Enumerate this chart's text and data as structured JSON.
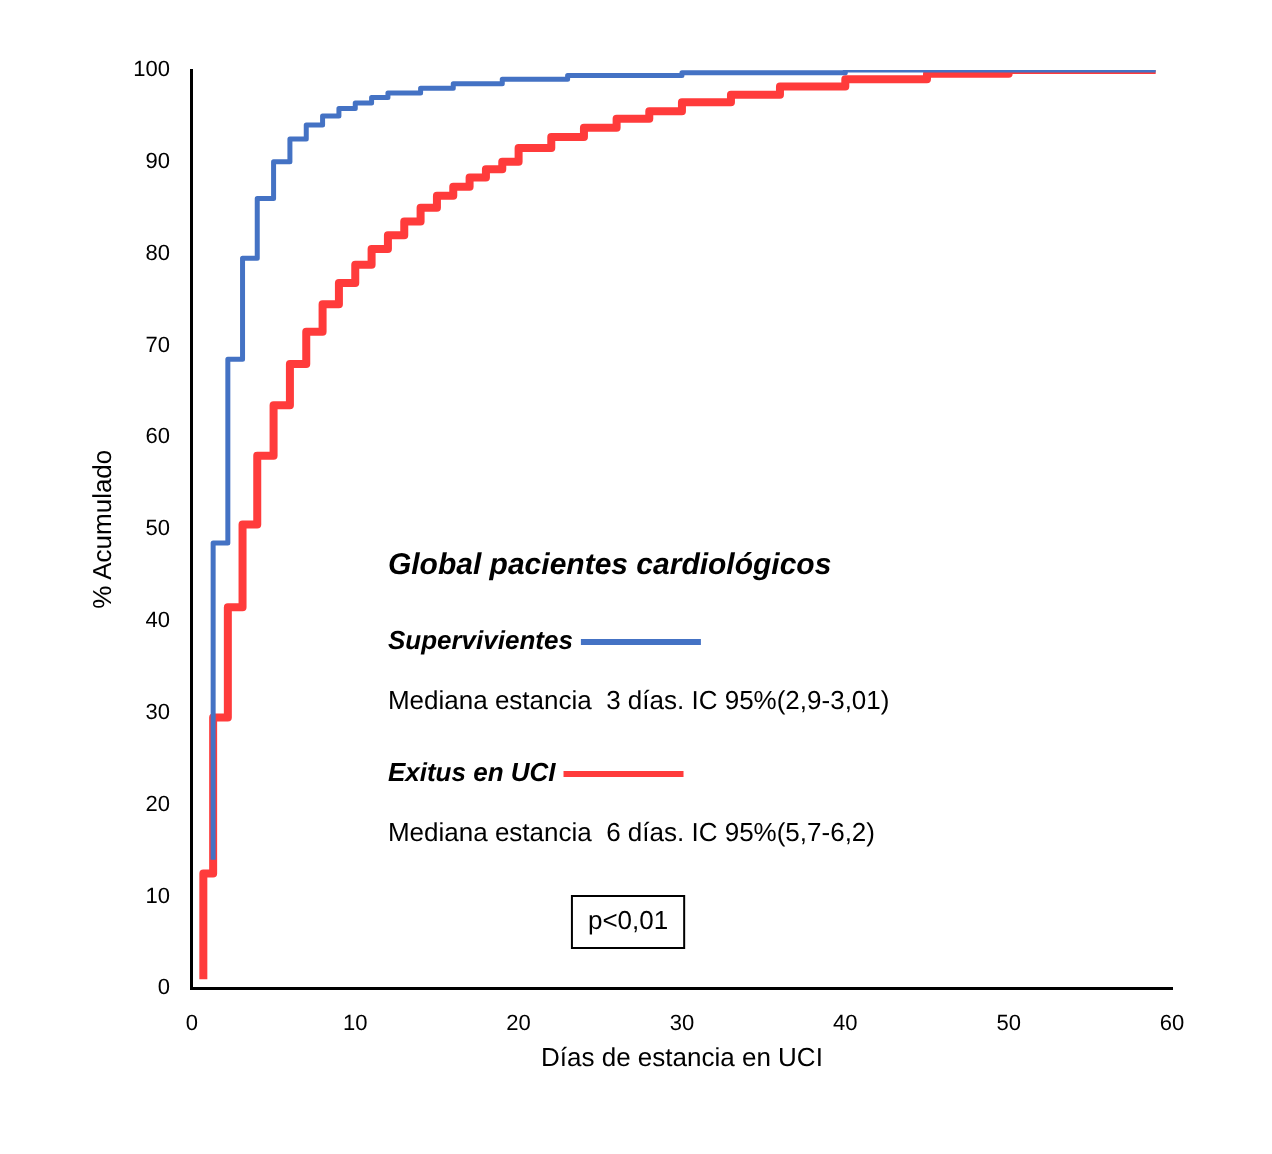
{
  "chart_data": {
    "type": "step",
    "title": "Global pacientes cardiológicos",
    "xlabel": "Días de estancia en UCI",
    "ylabel": "% Acumulado",
    "xlim": [
      0,
      60
    ],
    "xticks": [
      0,
      10,
      20,
      30,
      40,
      50,
      60
    ],
    "ylim": [
      0,
      100
    ],
    "yticks": [
      0,
      10,
      20,
      30,
      40,
      50,
      60,
      70,
      80,
      90,
      100
    ],
    "grid": false,
    "legend": "center",
    "marker": "none",
    "line_style": "solid",
    "series": [
      {
        "name": "Supervivientes",
        "color": "#4472c4",
        "x": [
          1.3,
          2.2,
          3.1,
          4,
          5,
          6,
          7,
          8,
          9,
          10,
          11,
          12,
          14,
          16,
          19,
          23,
          30,
          40,
          50,
          59
        ],
        "values": [
          14,
          48.5,
          68.5,
          79.5,
          86,
          90,
          92.5,
          94,
          95,
          95.8,
          96.4,
          97,
          97.5,
          98,
          98.5,
          99,
          99.4,
          99.7,
          100,
          100
        ]
      },
      {
        "name": "Exitus en UCI",
        "color": "#ff3b3b",
        "x": [
          0.7,
          1.3,
          2.2,
          3.1,
          4,
          5,
          6,
          7,
          8,
          9,
          10,
          11,
          12,
          13,
          14,
          15,
          16,
          17,
          18,
          19,
          20,
          22,
          24,
          26,
          28,
          30,
          33,
          36,
          40,
          45,
          50,
          55,
          59
        ],
        "values": [
          1,
          12.5,
          29.5,
          41.5,
          50.5,
          58,
          63.5,
          68,
          71.5,
          74.5,
          76.8,
          78.8,
          80.5,
          82,
          83.5,
          85,
          86.3,
          87.3,
          88.3,
          89.2,
          90,
          91.5,
          92.7,
          93.7,
          94.7,
          95.5,
          96.5,
          97.3,
          98.2,
          99,
          99.6,
          100,
          100
        ]
      }
    ],
    "annotations": [
      "Mediana estancia  3 días. IC 95%(2,9-3,01)",
      "Mediana estancia  6 días. IC 95%(5,7-6,2)",
      "p<0,01"
    ]
  }
}
